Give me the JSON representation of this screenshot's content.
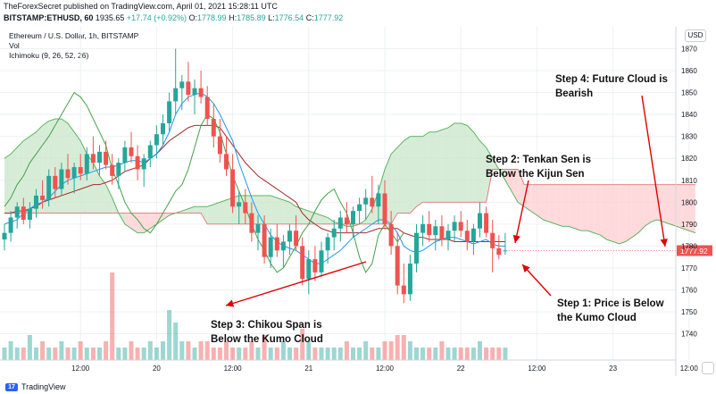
{
  "header": {
    "publisher_line": "TheForexSecret published on TradingView.com, April 01, 2021 15:28:11 UTC",
    "symbol": "BITSTAMP:ETHUSD, 60",
    "last": "1935.65",
    "change": "+17.74 (+0.92%)",
    "open_label": "O:",
    "open": "1778.99",
    "high_label": "H:",
    "high": "1785.89",
    "low_label": "L:",
    "low": "1776.54",
    "close_label": "C:",
    "close": "1777.92"
  },
  "legend": {
    "title": "Ethereum / U.S. Dollar, 1h, BITSTAMP",
    "vol": "Vol",
    "ichimoku": "Ichimoku (9, 26, 52, 26)"
  },
  "currency_button": "USD",
  "price_tag": "1777.92",
  "footer": {
    "brand": "TradingView",
    "logo_text": "17"
  },
  "colors": {
    "up": "#26a69a",
    "down": "#ef5350",
    "tenkan": "#2196f3",
    "kijun": "#a52a2a",
    "chikou": "#43a047",
    "span_a": "#4caf50",
    "span_b": "#e57373",
    "cloud_bull": "#c8e6c9",
    "cloud_bear": "#ffcdd2",
    "arrow": "#e00000"
  },
  "chart_data": {
    "type": "candlestick",
    "y_axis": {
      "ylim": [
        1728,
        1880
      ],
      "ticks": [
        1740,
        1750,
        1760,
        1770,
        1780,
        1790,
        1800,
        1810,
        1820,
        1830,
        1840,
        1850,
        1860,
        1870
      ],
      "side": "right"
    },
    "x_axis": {
      "tick_labels": [
        "12:00",
        "20",
        "12:00",
        "21",
        "12:00",
        "22",
        "12:00",
        "23",
        "12:00"
      ],
      "tick_hours": [
        12,
        24,
        36,
        48,
        60,
        72,
        84,
        96,
        108
      ]
    },
    "grid": true,
    "candles": [
      {
        "o": 1783,
        "h": 1790,
        "l": 1778,
        "c": 1786
      },
      {
        "o": 1786,
        "h": 1796,
        "l": 1782,
        "c": 1793
      },
      {
        "o": 1793,
        "h": 1800,
        "l": 1788,
        "c": 1798
      },
      {
        "o": 1798,
        "h": 1802,
        "l": 1790,
        "c": 1792
      },
      {
        "o": 1792,
        "h": 1800,
        "l": 1788,
        "c": 1797
      },
      {
        "o": 1797,
        "h": 1806,
        "l": 1793,
        "c": 1803
      },
      {
        "o": 1803,
        "h": 1810,
        "l": 1797,
        "c": 1801
      },
      {
        "o": 1801,
        "h": 1815,
        "l": 1798,
        "c": 1812
      },
      {
        "o": 1812,
        "h": 1816,
        "l": 1802,
        "c": 1806
      },
      {
        "o": 1806,
        "h": 1818,
        "l": 1803,
        "c": 1815
      },
      {
        "o": 1815,
        "h": 1822,
        "l": 1808,
        "c": 1811
      },
      {
        "o": 1811,
        "h": 1818,
        "l": 1804,
        "c": 1816
      },
      {
        "o": 1816,
        "h": 1822,
        "l": 1810,
        "c": 1813
      },
      {
        "o": 1813,
        "h": 1825,
        "l": 1810,
        "c": 1822
      },
      {
        "o": 1822,
        "h": 1830,
        "l": 1815,
        "c": 1818
      },
      {
        "o": 1818,
        "h": 1826,
        "l": 1812,
        "c": 1823
      },
      {
        "o": 1823,
        "h": 1828,
        "l": 1815,
        "c": 1817
      },
      {
        "o": 1817,
        "h": 1822,
        "l": 1808,
        "c": 1812
      },
      {
        "o": 1812,
        "h": 1820,
        "l": 1806,
        "c": 1818
      },
      {
        "o": 1818,
        "h": 1828,
        "l": 1814,
        "c": 1825
      },
      {
        "o": 1825,
        "h": 1832,
        "l": 1818,
        "c": 1821
      },
      {
        "o": 1821,
        "h": 1826,
        "l": 1810,
        "c": 1815
      },
      {
        "o": 1815,
        "h": 1822,
        "l": 1807,
        "c": 1820
      },
      {
        "o": 1820,
        "h": 1828,
        "l": 1816,
        "c": 1826
      },
      {
        "o": 1826,
        "h": 1835,
        "l": 1820,
        "c": 1831
      },
      {
        "o": 1831,
        "h": 1840,
        "l": 1826,
        "c": 1836
      },
      {
        "o": 1836,
        "h": 1850,
        "l": 1832,
        "c": 1846
      },
      {
        "o": 1846,
        "h": 1870,
        "l": 1840,
        "c": 1852
      },
      {
        "o": 1852,
        "h": 1858,
        "l": 1842,
        "c": 1855
      },
      {
        "o": 1855,
        "h": 1864,
        "l": 1846,
        "c": 1849
      },
      {
        "o": 1849,
        "h": 1856,
        "l": 1840,
        "c": 1852
      },
      {
        "o": 1852,
        "h": 1860,
        "l": 1845,
        "c": 1848
      },
      {
        "o": 1848,
        "h": 1853,
        "l": 1835,
        "c": 1838
      },
      {
        "o": 1838,
        "h": 1845,
        "l": 1825,
        "c": 1830
      },
      {
        "o": 1830,
        "h": 1838,
        "l": 1818,
        "c": 1822
      },
      {
        "o": 1822,
        "h": 1830,
        "l": 1812,
        "c": 1815
      },
      {
        "o": 1815,
        "h": 1822,
        "l": 1795,
        "c": 1798
      },
      {
        "o": 1798,
        "h": 1805,
        "l": 1790,
        "c": 1800
      },
      {
        "o": 1800,
        "h": 1806,
        "l": 1790,
        "c": 1795
      },
      {
        "o": 1795,
        "h": 1800,
        "l": 1782,
        "c": 1786
      },
      {
        "o": 1786,
        "h": 1794,
        "l": 1778,
        "c": 1790
      },
      {
        "o": 1790,
        "h": 1794,
        "l": 1772,
        "c": 1775
      },
      {
        "o": 1775,
        "h": 1788,
        "l": 1770,
        "c": 1784
      },
      {
        "o": 1784,
        "h": 1790,
        "l": 1775,
        "c": 1778
      },
      {
        "o": 1778,
        "h": 1785,
        "l": 1770,
        "c": 1782
      },
      {
        "o": 1782,
        "h": 1790,
        "l": 1776,
        "c": 1787
      },
      {
        "o": 1787,
        "h": 1794,
        "l": 1778,
        "c": 1780
      },
      {
        "o": 1780,
        "h": 1784,
        "l": 1762,
        "c": 1765
      },
      {
        "o": 1765,
        "h": 1778,
        "l": 1758,
        "c": 1774
      },
      {
        "o": 1774,
        "h": 1780,
        "l": 1764,
        "c": 1768
      },
      {
        "o": 1768,
        "h": 1782,
        "l": 1766,
        "c": 1778
      },
      {
        "o": 1778,
        "h": 1786,
        "l": 1772,
        "c": 1784
      },
      {
        "o": 1784,
        "h": 1792,
        "l": 1778,
        "c": 1788
      },
      {
        "o": 1788,
        "h": 1796,
        "l": 1782,
        "c": 1793
      },
      {
        "o": 1793,
        "h": 1800,
        "l": 1786,
        "c": 1790
      },
      {
        "o": 1790,
        "h": 1798,
        "l": 1784,
        "c": 1796
      },
      {
        "o": 1796,
        "h": 1802,
        "l": 1790,
        "c": 1799
      },
      {
        "o": 1799,
        "h": 1806,
        "l": 1792,
        "c": 1802
      },
      {
        "o": 1802,
        "h": 1812,
        "l": 1795,
        "c": 1798
      },
      {
        "o": 1798,
        "h": 1808,
        "l": 1790,
        "c": 1804
      },
      {
        "o": 1804,
        "h": 1810,
        "l": 1788,
        "c": 1790
      },
      {
        "o": 1790,
        "h": 1796,
        "l": 1776,
        "c": 1780
      },
      {
        "o": 1780,
        "h": 1786,
        "l": 1758,
        "c": 1762
      },
      {
        "o": 1762,
        "h": 1772,
        "l": 1754,
        "c": 1758
      },
      {
        "o": 1758,
        "h": 1776,
        "l": 1755,
        "c": 1772
      },
      {
        "o": 1772,
        "h": 1790,
        "l": 1768,
        "c": 1786
      },
      {
        "o": 1786,
        "h": 1794,
        "l": 1780,
        "c": 1790
      },
      {
        "o": 1790,
        "h": 1796,
        "l": 1782,
        "c": 1785
      },
      {
        "o": 1785,
        "h": 1792,
        "l": 1778,
        "c": 1789
      },
      {
        "o": 1789,
        "h": 1794,
        "l": 1780,
        "c": 1783
      },
      {
        "o": 1783,
        "h": 1790,
        "l": 1778,
        "c": 1787
      },
      {
        "o": 1787,
        "h": 1794,
        "l": 1782,
        "c": 1791
      },
      {
        "o": 1791,
        "h": 1796,
        "l": 1784,
        "c": 1787
      },
      {
        "o": 1787,
        "h": 1792,
        "l": 1778,
        "c": 1782
      },
      {
        "o": 1782,
        "h": 1790,
        "l": 1776,
        "c": 1788
      },
      {
        "o": 1788,
        "h": 1800,
        "l": 1784,
        "c": 1795
      },
      {
        "o": 1795,
        "h": 1798,
        "l": 1784,
        "c": 1786
      },
      {
        "o": 1786,
        "h": 1792,
        "l": 1768,
        "c": 1779
      },
      {
        "o": 1779,
        "h": 1785,
        "l": 1774,
        "c": 1776
      },
      {
        "o": 1778,
        "h": 1786,
        "l": 1776,
        "c": 1778
      }
    ],
    "volume_ticks_hint": [
      2,
      3,
      2,
      2,
      4,
      2,
      3,
      2,
      2,
      3,
      2,
      2,
      3,
      2,
      2,
      2,
      3,
      2,
      2,
      2,
      3,
      2,
      2,
      3,
      2,
      3,
      4,
      6,
      3,
      3,
      2,
      3,
      3,
      2,
      2,
      3,
      2,
      2,
      2,
      3,
      2,
      4,
      2,
      2,
      3,
      2,
      2,
      5,
      3,
      2,
      2,
      2,
      2,
      2,
      3,
      2,
      2,
      3,
      2,
      2,
      3,
      3,
      4,
      4,
      3,
      2,
      2,
      2,
      2,
      3,
      2,
      2,
      2,
      2,
      2,
      3,
      2,
      2,
      2,
      2
    ],
    "volume_special": [
      {
        "index": 17,
        "value": 14
      },
      {
        "index": 26,
        "value": 8
      }
    ],
    "tenkan_sen": [
      1790,
      1791,
      1792,
      1795,
      1797,
      1799,
      1800,
      1802,
      1805,
      1808,
      1810,
      1811,
      1812,
      1813,
      1814,
      1815,
      1816,
      1816,
      1817,
      1818,
      1819,
      1819,
      1818,
      1820,
      1822,
      1826,
      1832,
      1840,
      1845,
      1848,
      1849,
      1850,
      1848,
      1845,
      1840,
      1834,
      1828,
      1818,
      1810,
      1802,
      1795,
      1790,
      1785,
      1782,
      1780,
      1779,
      1778,
      1776,
      1774,
      1772,
      1772,
      1774,
      1776,
      1778,
      1781,
      1784,
      1786,
      1788,
      1790,
      1792,
      1792,
      1790,
      1786,
      1780,
      1778,
      1777,
      1778,
      1780,
      1782,
      1783,
      1784,
      1784,
      1783,
      1782,
      1781,
      1782,
      1783,
      1781,
      1780,
      1780
    ],
    "kijun_sen": [
      1795,
      1795,
      1796,
      1796,
      1797,
      1798,
      1800,
      1801,
      1802,
      1803,
      1804,
      1805,
      1806,
      1807,
      1808,
      1808,
      1809,
      1810,
      1812,
      1814,
      1815,
      1816,
      1817,
      1820,
      1822,
      1825,
      1828,
      1830,
      1832,
      1834,
      1835,
      1835,
      1835,
      1835,
      1834,
      1830,
      1826,
      1822,
      1818,
      1815,
      1812,
      1810,
      1808,
      1806,
      1804,
      1802,
      1800,
      1795,
      1792,
      1790,
      1788,
      1787,
      1786,
      1786,
      1786,
      1786,
      1786,
      1786,
      1787,
      1788,
      1788,
      1788,
      1788,
      1786,
      1785,
      1784,
      1784,
      1783,
      1783,
      1783,
      1783,
      1782,
      1782,
      1782,
      1782,
      1782,
      1782,
      1782,
      1782,
      1782
    ],
    "chikou_span": [
      1798,
      1802,
      1808,
      1812,
      1818,
      1822,
      1826,
      1830,
      1835,
      1840,
      1845,
      1850,
      1848,
      1844,
      1838,
      1832,
      1826,
      1815,
      1808,
      1800,
      1795,
      1792,
      1788,
      1786,
      1790,
      1795,
      1800,
      1805,
      1808,
      1815,
      1825,
      1835,
      1840,
      1838,
      1832,
      1822,
      1812,
      1805,
      1798,
      1790,
      1783,
      1778,
      1772,
      1768,
      1770,
      1775,
      1780,
      1786,
      1790,
      1796,
      1801,
      1804,
      1806,
      1800,
      1795,
      1786,
      1775,
      1768,
      1772,
      1785,
      1790,
      1786,
      1782,
      1786
    ],
    "senkou_a": [
      1820,
      1822,
      1825,
      1828,
      1830,
      1832,
      1835,
      1837,
      1838,
      1838,
      1836,
      1832,
      1828,
      1822,
      1818,
      1812,
      1808,
      1802,
      1795,
      1790,
      1788,
      1786,
      1786,
      1788,
      1790,
      1792,
      1794,
      1795,
      1796,
      1797,
      1798,
      1798,
      1798,
      1799,
      1800,
      1801,
      1802,
      1803,
      1803,
      1803,
      1803,
      1803,
      1803,
      1802,
      1801,
      1800,
      1798,
      1797,
      1796,
      1795,
      1794,
      1793,
      1791,
      1790,
      1789,
      1789,
      1790,
      1792,
      1797,
      1805,
      1815,
      1822,
      1825,
      1828,
      1830,
      1830,
      1830,
      1832,
      1832,
      1833,
      1834,
      1836,
      1836,
      1835,
      1832,
      1828,
      1825,
      1820,
      1815,
      1810,
      1805,
      1800,
      1798,
      1796,
      1794,
      1792,
      1791,
      1790,
      1789,
      1789,
      1788,
      1787,
      1787,
      1786,
      1785,
      1783,
      1782,
      1781,
      1782,
      1784,
      1786,
      1789,
      1791,
      1792,
      1791,
      1790,
      1789,
      1788,
      1787,
      1786
    ],
    "senkou_b": [
      1795,
      1795,
      1795,
      1795,
      1795,
      1795,
      1795,
      1795,
      1795,
      1795,
      1795,
      1795,
      1795,
      1795,
      1795,
      1795,
      1795,
      1795,
      1795,
      1795,
      1795,
      1795,
      1795,
      1795,
      1795,
      1795,
      1795,
      1795,
      1795,
      1795,
      1795,
      1795,
      1790,
      1790,
      1790,
      1790,
      1790,
      1790,
      1790,
      1790,
      1790,
      1790,
      1790,
      1790,
      1790,
      1790,
      1790,
      1790,
      1790,
      1790,
      1790,
      1790,
      1790,
      1790,
      1790,
      1790,
      1790,
      1790,
      1790,
      1790,
      1790,
      1790,
      1795,
      1795,
      1795,
      1798,
      1800,
      1800,
      1800,
      1800,
      1800,
      1800,
      1800,
      1800,
      1800,
      1800,
      1800,
      1815,
      1815,
      1815,
      1815,
      1815,
      1808,
      1808,
      1808,
      1808,
      1808,
      1808,
      1808,
      1808,
      1808,
      1808,
      1808,
      1808,
      1808,
      1808,
      1808,
      1808,
      1808,
      1808,
      1808,
      1808,
      1808,
      1808,
      1808,
      1808,
      1808,
      1808,
      1808,
      1808
    ],
    "annotations": [
      {
        "text": [
          "Step 4: Future Cloud is",
          "Bearish"
        ]
      },
      {
        "text": [
          "Step 2: Tenkan Sen is",
          "Below the Kijun Sen"
        ]
      },
      {
        "text": [
          "Step 1: Price is Below",
          "the Kumo Cloud"
        ]
      },
      {
        "text": [
          "Step 3: Chikou Span is",
          "Below the Kumo Cloud"
        ]
      }
    ]
  }
}
